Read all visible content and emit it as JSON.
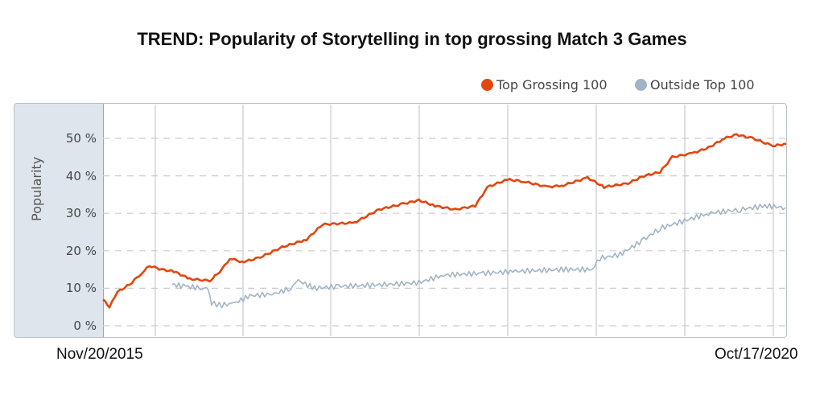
{
  "chart_data": {
    "type": "line",
    "title": "TREND: Popularity of Storytelling in top grossing Match 3 Games",
    "ylabel": "Popularity",
    "xlabel": "",
    "x_unit": "days since Nov/20/2015",
    "xlim": [
      0,
      1793
    ],
    "ylim": [
      0,
      53
    ],
    "yticks": [
      "0 %",
      "10 %",
      "20 %",
      "30 %",
      "40 %",
      "50 %"
    ],
    "ytick_values": [
      0,
      10,
      20,
      30,
      40,
      50
    ],
    "x_start_label": "Nov/20/2015",
    "x_end_label": "Oct/17/2020",
    "grid": true,
    "legend_position": "top-right",
    "series": [
      {
        "name": "Top Grossing 100",
        "color": "#e2460f",
        "points": [
          [
            0,
            7
          ],
          [
            17,
            5
          ],
          [
            38,
            9
          ],
          [
            70,
            11
          ],
          [
            101,
            14
          ],
          [
            122,
            16
          ],
          [
            154,
            15
          ],
          [
            186,
            14.5
          ],
          [
            228,
            12.5
          ],
          [
            281,
            12
          ],
          [
            312,
            15
          ],
          [
            333,
            18
          ],
          [
            365,
            17
          ],
          [
            407,
            18
          ],
          [
            471,
            21
          ],
          [
            534,
            23
          ],
          [
            576,
            27
          ],
          [
            660,
            27.5
          ],
          [
            724,
            31
          ],
          [
            787,
            32.5
          ],
          [
            829,
            33.5
          ],
          [
            871,
            32
          ],
          [
            924,
            31
          ],
          [
            977,
            32
          ],
          [
            1009,
            37
          ],
          [
            1061,
            39
          ],
          [
            1104,
            38.5
          ],
          [
            1167,
            37
          ],
          [
            1209,
            37.5
          ],
          [
            1272,
            39.5
          ],
          [
            1315,
            37
          ],
          [
            1378,
            38
          ],
          [
            1420,
            40
          ],
          [
            1462,
            41
          ],
          [
            1494,
            45
          ],
          [
            1547,
            46
          ],
          [
            1589,
            47.5
          ],
          [
            1631,
            50
          ],
          [
            1663,
            51
          ],
          [
            1705,
            50
          ],
          [
            1758,
            48
          ],
          [
            1793,
            48.5
          ]
        ]
      },
      {
        "name": "Outside Top 100",
        "color": "#a2b4c4",
        "points": [
          [
            181,
            11
          ],
          [
            217,
            10.5
          ],
          [
            260,
            10
          ],
          [
            276,
            10
          ],
          [
            285,
            6
          ],
          [
            312,
            5.5
          ],
          [
            344,
            6
          ],
          [
            386,
            8
          ],
          [
            450,
            8.5
          ],
          [
            492,
            10
          ],
          [
            513,
            12
          ],
          [
            555,
            10
          ],
          [
            618,
            10.5
          ],
          [
            745,
            11
          ],
          [
            829,
            11.5
          ],
          [
            893,
            13.5
          ],
          [
            998,
            14
          ],
          [
            1082,
            14.5
          ],
          [
            1209,
            15
          ],
          [
            1283,
            15
          ],
          [
            1304,
            18
          ],
          [
            1357,
            19
          ],
          [
            1420,
            23
          ],
          [
            1462,
            26
          ],
          [
            1526,
            28
          ],
          [
            1589,
            30
          ],
          [
            1673,
            31
          ],
          [
            1737,
            32
          ],
          [
            1791,
            31.5
          ]
        ]
      }
    ]
  }
}
